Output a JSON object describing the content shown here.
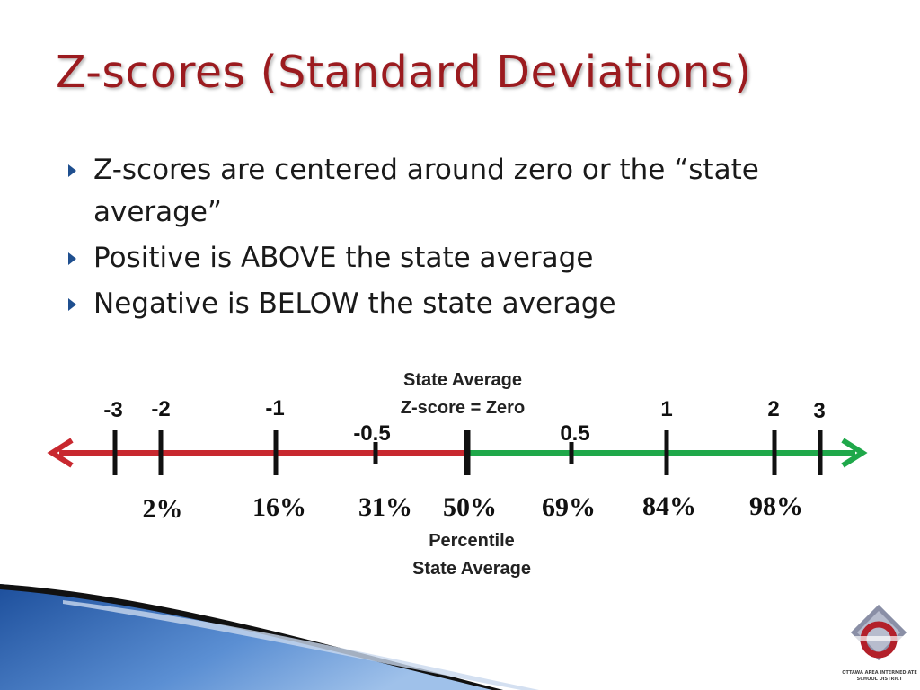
{
  "title": "Z-scores (Standard Deviations)",
  "bullets": [
    "Z-scores are centered around zero or the “state average”",
    "Positive is ABOVE the state average",
    "Negative is BELOW the state average"
  ],
  "diagram": {
    "top_label": [
      "State Average",
      "Z-score = Zero"
    ],
    "bottom_label": [
      "Percentile",
      "State Average"
    ],
    "colors": {
      "negative": "#c8282f",
      "positive": "#1fa84a",
      "title": "#9b1b1f",
      "bullet": "#1f4f8f"
    },
    "marks": [
      {
        "z": -3,
        "label": "-3",
        "percent": ""
      },
      {
        "z": -2,
        "label": "-2",
        "percent": "2%"
      },
      {
        "z": -1,
        "label": "-1",
        "percent": "16%"
      },
      {
        "z": -0.5,
        "label": "-0.5",
        "percent": "31%"
      },
      {
        "z": 0,
        "label": "",
        "percent": "50%"
      },
      {
        "z": 0.5,
        "label": "0.5",
        "percent": "69%"
      },
      {
        "z": 1,
        "label": "1",
        "percent": "84%"
      },
      {
        "z": 2,
        "label": "2",
        "percent": "98%"
      },
      {
        "z": 3,
        "label": "3",
        "percent": ""
      }
    ]
  },
  "logo": {
    "text": "OTTAWA AREA INTERMEDIATE SCHOOL DISTRICT"
  }
}
